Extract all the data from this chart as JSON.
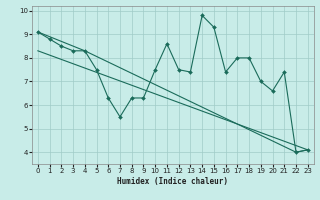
{
  "xlabel": "Humidex (Indice chaleur)",
  "xlim": [
    -0.5,
    23.5
  ],
  "ylim": [
    3.5,
    10.2
  ],
  "yticks": [
    4,
    5,
    6,
    7,
    8,
    9,
    10
  ],
  "xticks": [
    0,
    1,
    2,
    3,
    4,
    5,
    6,
    7,
    8,
    9,
    10,
    11,
    12,
    13,
    14,
    15,
    16,
    17,
    18,
    19,
    20,
    21,
    22,
    23
  ],
  "bg_color": "#c8ece8",
  "line_color": "#1a6b5a",
  "grid_color": "#a0ccc8",
  "series1_x": [
    0,
    1,
    2,
    3,
    4,
    5,
    6,
    7,
    8,
    9,
    10,
    11,
    12,
    13,
    14,
    15,
    16,
    17,
    18,
    19,
    20,
    21,
    22,
    23
  ],
  "series1_y": [
    9.1,
    8.8,
    8.5,
    8.3,
    8.3,
    7.5,
    6.3,
    5.5,
    6.3,
    6.3,
    7.5,
    8.6,
    7.5,
    7.4,
    9.8,
    9.3,
    7.4,
    8.0,
    8.0,
    7.0,
    6.6,
    7.4,
    4.0,
    4.1
  ],
  "series2_x": [
    0,
    4,
    22,
    23
  ],
  "series2_y": [
    9.1,
    8.3,
    4.0,
    4.1
  ],
  "series3_x": [
    0,
    23
  ],
  "series3_y": [
    8.3,
    4.1
  ]
}
